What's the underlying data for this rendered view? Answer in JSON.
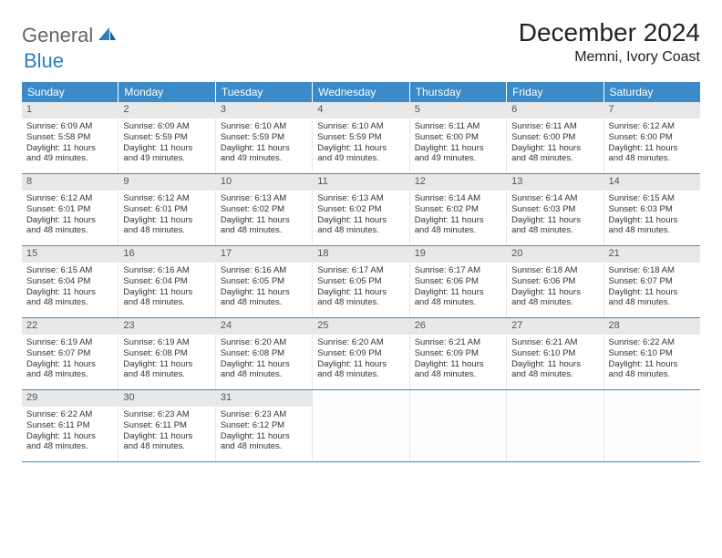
{
  "logo": {
    "text1": "General",
    "text2": "Blue"
  },
  "title": "December 2024",
  "location": "Memni, Ivory Coast",
  "colors": {
    "header_bg": "#3b8bc9",
    "header_text": "#ffffff",
    "daynum_bg": "#e8e8e8",
    "border": "#3b8bc9",
    "text": "#333333",
    "background": "#ffffff"
  },
  "day_labels": [
    "Sunday",
    "Monday",
    "Tuesday",
    "Wednesday",
    "Thursday",
    "Friday",
    "Saturday"
  ],
  "weeks": [
    [
      {
        "n": "1",
        "sr": "Sunrise: 6:09 AM",
        "ss": "Sunset: 5:58 PM",
        "d1": "Daylight: 11 hours",
        "d2": "and 49 minutes."
      },
      {
        "n": "2",
        "sr": "Sunrise: 6:09 AM",
        "ss": "Sunset: 5:59 PM",
        "d1": "Daylight: 11 hours",
        "d2": "and 49 minutes."
      },
      {
        "n": "3",
        "sr": "Sunrise: 6:10 AM",
        "ss": "Sunset: 5:59 PM",
        "d1": "Daylight: 11 hours",
        "d2": "and 49 minutes."
      },
      {
        "n": "4",
        "sr": "Sunrise: 6:10 AM",
        "ss": "Sunset: 5:59 PM",
        "d1": "Daylight: 11 hours",
        "d2": "and 49 minutes."
      },
      {
        "n": "5",
        "sr": "Sunrise: 6:11 AM",
        "ss": "Sunset: 6:00 PM",
        "d1": "Daylight: 11 hours",
        "d2": "and 49 minutes."
      },
      {
        "n": "6",
        "sr": "Sunrise: 6:11 AM",
        "ss": "Sunset: 6:00 PM",
        "d1": "Daylight: 11 hours",
        "d2": "and 48 minutes."
      },
      {
        "n": "7",
        "sr": "Sunrise: 6:12 AM",
        "ss": "Sunset: 6:00 PM",
        "d1": "Daylight: 11 hours",
        "d2": "and 48 minutes."
      }
    ],
    [
      {
        "n": "8",
        "sr": "Sunrise: 6:12 AM",
        "ss": "Sunset: 6:01 PM",
        "d1": "Daylight: 11 hours",
        "d2": "and 48 minutes."
      },
      {
        "n": "9",
        "sr": "Sunrise: 6:12 AM",
        "ss": "Sunset: 6:01 PM",
        "d1": "Daylight: 11 hours",
        "d2": "and 48 minutes."
      },
      {
        "n": "10",
        "sr": "Sunrise: 6:13 AM",
        "ss": "Sunset: 6:02 PM",
        "d1": "Daylight: 11 hours",
        "d2": "and 48 minutes."
      },
      {
        "n": "11",
        "sr": "Sunrise: 6:13 AM",
        "ss": "Sunset: 6:02 PM",
        "d1": "Daylight: 11 hours",
        "d2": "and 48 minutes."
      },
      {
        "n": "12",
        "sr": "Sunrise: 6:14 AM",
        "ss": "Sunset: 6:02 PM",
        "d1": "Daylight: 11 hours",
        "d2": "and 48 minutes."
      },
      {
        "n": "13",
        "sr": "Sunrise: 6:14 AM",
        "ss": "Sunset: 6:03 PM",
        "d1": "Daylight: 11 hours",
        "d2": "and 48 minutes."
      },
      {
        "n": "14",
        "sr": "Sunrise: 6:15 AM",
        "ss": "Sunset: 6:03 PM",
        "d1": "Daylight: 11 hours",
        "d2": "and 48 minutes."
      }
    ],
    [
      {
        "n": "15",
        "sr": "Sunrise: 6:15 AM",
        "ss": "Sunset: 6:04 PM",
        "d1": "Daylight: 11 hours",
        "d2": "and 48 minutes."
      },
      {
        "n": "16",
        "sr": "Sunrise: 6:16 AM",
        "ss": "Sunset: 6:04 PM",
        "d1": "Daylight: 11 hours",
        "d2": "and 48 minutes."
      },
      {
        "n": "17",
        "sr": "Sunrise: 6:16 AM",
        "ss": "Sunset: 6:05 PM",
        "d1": "Daylight: 11 hours",
        "d2": "and 48 minutes."
      },
      {
        "n": "18",
        "sr": "Sunrise: 6:17 AM",
        "ss": "Sunset: 6:05 PM",
        "d1": "Daylight: 11 hours",
        "d2": "and 48 minutes."
      },
      {
        "n": "19",
        "sr": "Sunrise: 6:17 AM",
        "ss": "Sunset: 6:06 PM",
        "d1": "Daylight: 11 hours",
        "d2": "and 48 minutes."
      },
      {
        "n": "20",
        "sr": "Sunrise: 6:18 AM",
        "ss": "Sunset: 6:06 PM",
        "d1": "Daylight: 11 hours",
        "d2": "and 48 minutes."
      },
      {
        "n": "21",
        "sr": "Sunrise: 6:18 AM",
        "ss": "Sunset: 6:07 PM",
        "d1": "Daylight: 11 hours",
        "d2": "and 48 minutes."
      }
    ],
    [
      {
        "n": "22",
        "sr": "Sunrise: 6:19 AM",
        "ss": "Sunset: 6:07 PM",
        "d1": "Daylight: 11 hours",
        "d2": "and 48 minutes."
      },
      {
        "n": "23",
        "sr": "Sunrise: 6:19 AM",
        "ss": "Sunset: 6:08 PM",
        "d1": "Daylight: 11 hours",
        "d2": "and 48 minutes."
      },
      {
        "n": "24",
        "sr": "Sunrise: 6:20 AM",
        "ss": "Sunset: 6:08 PM",
        "d1": "Daylight: 11 hours",
        "d2": "and 48 minutes."
      },
      {
        "n": "25",
        "sr": "Sunrise: 6:20 AM",
        "ss": "Sunset: 6:09 PM",
        "d1": "Daylight: 11 hours",
        "d2": "and 48 minutes."
      },
      {
        "n": "26",
        "sr": "Sunrise: 6:21 AM",
        "ss": "Sunset: 6:09 PM",
        "d1": "Daylight: 11 hours",
        "d2": "and 48 minutes."
      },
      {
        "n": "27",
        "sr": "Sunrise: 6:21 AM",
        "ss": "Sunset: 6:10 PM",
        "d1": "Daylight: 11 hours",
        "d2": "and 48 minutes."
      },
      {
        "n": "28",
        "sr": "Sunrise: 6:22 AM",
        "ss": "Sunset: 6:10 PM",
        "d1": "Daylight: 11 hours",
        "d2": "and 48 minutes."
      }
    ],
    [
      {
        "n": "29",
        "sr": "Sunrise: 6:22 AM",
        "ss": "Sunset: 6:11 PM",
        "d1": "Daylight: 11 hours",
        "d2": "and 48 minutes."
      },
      {
        "n": "30",
        "sr": "Sunrise: 6:23 AM",
        "ss": "Sunset: 6:11 PM",
        "d1": "Daylight: 11 hours",
        "d2": "and 48 minutes."
      },
      {
        "n": "31",
        "sr": "Sunrise: 6:23 AM",
        "ss": "Sunset: 6:12 PM",
        "d1": "Daylight: 11 hours",
        "d2": "and 48 minutes."
      },
      null,
      null,
      null,
      null
    ]
  ]
}
